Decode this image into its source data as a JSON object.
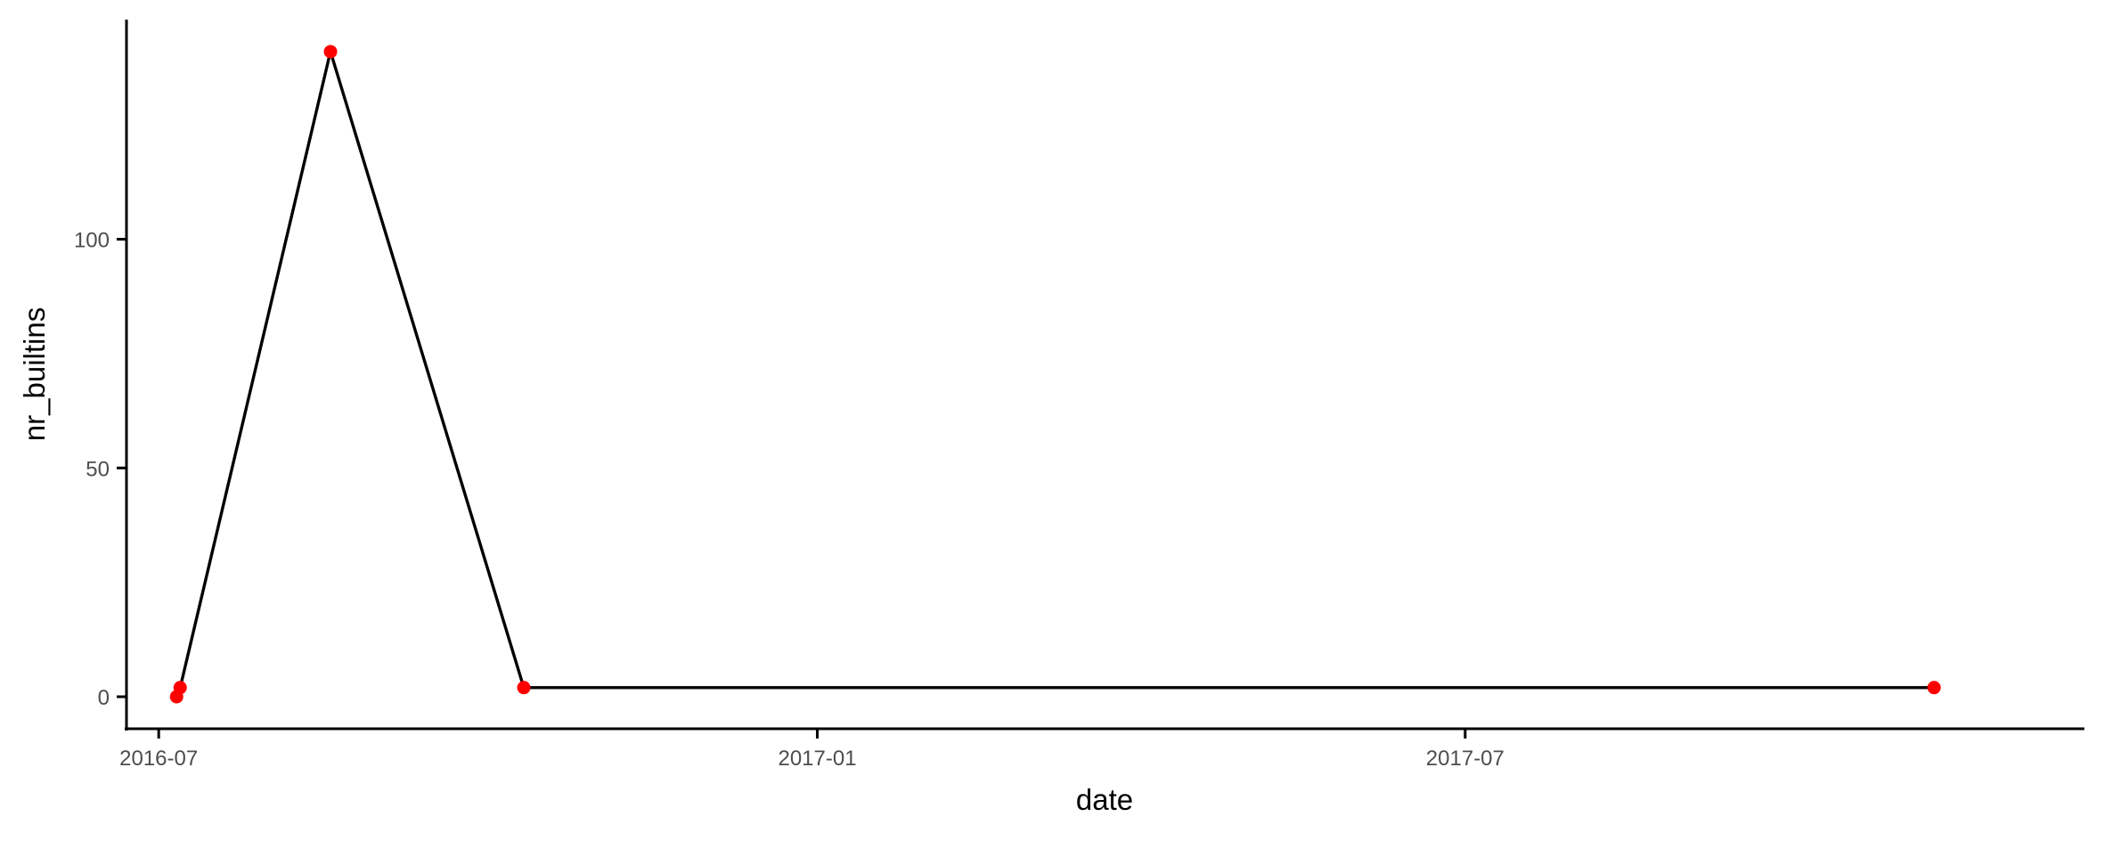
{
  "chart_data": {
    "type": "line",
    "title": "",
    "xlabel": "date",
    "ylabel": "nr_builtins",
    "x_axis_type": "date",
    "xlim": [
      "2016-06-22",
      "2017-12-21"
    ],
    "ylim": [
      -7,
      148
    ],
    "x_ticks": [
      {
        "date": "2016-07-01",
        "label": "2016-07"
      },
      {
        "date": "2017-01-01",
        "label": "2017-01"
      },
      {
        "date": "2017-07-01",
        "label": "2017-07"
      }
    ],
    "y_ticks": [
      0,
      50,
      100
    ],
    "grid": false,
    "legend": "none",
    "series": [
      {
        "line_color": "#000000",
        "point_color": "#ff0000",
        "points": [
          {
            "x": "2016-07-06",
            "y": 0
          },
          {
            "x": "2016-07-07",
            "y": 2
          },
          {
            "x": "2016-08-18",
            "y": 141
          },
          {
            "x": "2016-10-11",
            "y": 2
          },
          {
            "x": "2017-11-09",
            "y": 2
          }
        ]
      }
    ]
  }
}
